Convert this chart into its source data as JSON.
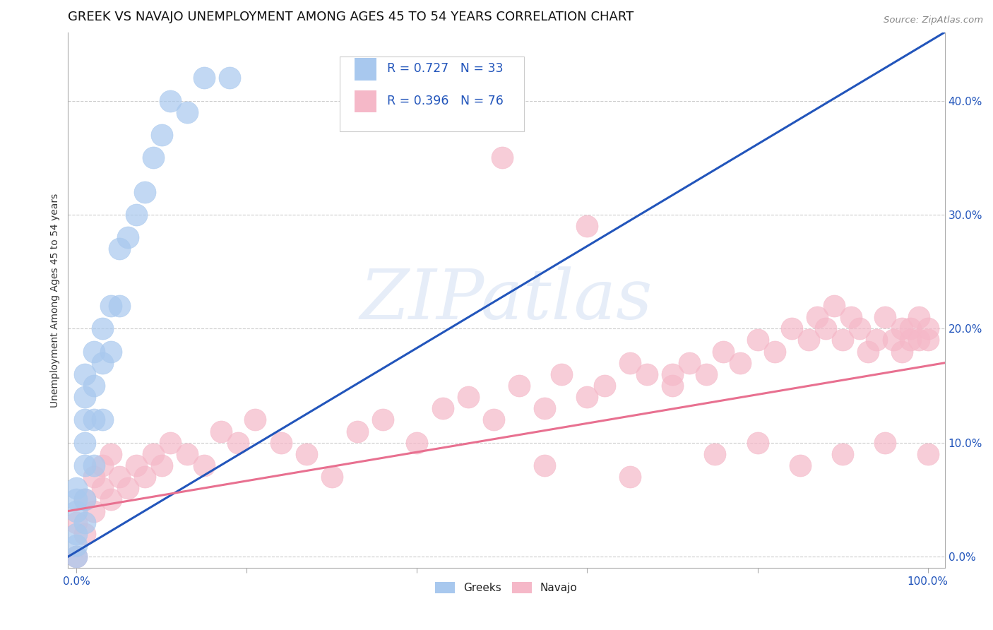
{
  "title": "GREEK VS NAVAJO UNEMPLOYMENT AMONG AGES 45 TO 54 YEARS CORRELATION CHART",
  "source": "Source: ZipAtlas.com",
  "ylabel": "Unemployment Among Ages 45 to 54 years",
  "watermark": "ZIPatlas",
  "greek_R": 0.727,
  "greek_N": 33,
  "navajo_R": 0.396,
  "navajo_N": 76,
  "greek_color": "#a8c8ee",
  "navajo_color": "#f5b8c8",
  "greek_line_color": "#2255bb",
  "navajo_line_color": "#e87090",
  "legend_text_color": "#2255bb",
  "background_color": "#ffffff",
  "greek_x": [
    0.0,
    0.0,
    0.0,
    0.0,
    0.0,
    0.0,
    0.01,
    0.01,
    0.01,
    0.01,
    0.01,
    0.01,
    0.01,
    0.02,
    0.02,
    0.02,
    0.02,
    0.03,
    0.03,
    0.03,
    0.04,
    0.04,
    0.05,
    0.05,
    0.06,
    0.07,
    0.08,
    0.09,
    0.1,
    0.11,
    0.13,
    0.15,
    0.18
  ],
  "greek_y": [
    0.0,
    0.01,
    0.02,
    0.04,
    0.05,
    0.06,
    0.03,
    0.05,
    0.08,
    0.1,
    0.12,
    0.14,
    0.16,
    0.08,
    0.12,
    0.15,
    0.18,
    0.12,
    0.17,
    0.2,
    0.18,
    0.22,
    0.22,
    0.27,
    0.28,
    0.3,
    0.32,
    0.35,
    0.37,
    0.4,
    0.39,
    0.42,
    0.42
  ],
  "navajo_x": [
    0.0,
    0.0,
    0.01,
    0.01,
    0.02,
    0.02,
    0.03,
    0.03,
    0.04,
    0.04,
    0.05,
    0.06,
    0.07,
    0.08,
    0.09,
    0.1,
    0.11,
    0.13,
    0.15,
    0.17,
    0.19,
    0.21,
    0.24,
    0.27,
    0.3,
    0.33,
    0.36,
    0.4,
    0.43,
    0.46,
    0.49,
    0.52,
    0.55,
    0.57,
    0.6,
    0.62,
    0.65,
    0.67,
    0.7,
    0.72,
    0.74,
    0.76,
    0.78,
    0.8,
    0.82,
    0.84,
    0.86,
    0.87,
    0.88,
    0.89,
    0.9,
    0.91,
    0.92,
    0.93,
    0.94,
    0.95,
    0.96,
    0.97,
    0.97,
    0.98,
    0.98,
    0.99,
    0.99,
    1.0,
    1.0,
    0.5,
    0.55,
    0.6,
    0.65,
    0.7,
    0.75,
    0.8,
    0.85,
    0.9,
    0.95,
    1.0
  ],
  "navajo_y": [
    0.0,
    0.03,
    0.02,
    0.05,
    0.04,
    0.07,
    0.06,
    0.08,
    0.05,
    0.09,
    0.07,
    0.06,
    0.08,
    0.07,
    0.09,
    0.08,
    0.1,
    0.09,
    0.08,
    0.11,
    0.1,
    0.12,
    0.1,
    0.09,
    0.07,
    0.11,
    0.12,
    0.1,
    0.13,
    0.14,
    0.12,
    0.15,
    0.13,
    0.16,
    0.14,
    0.15,
    0.17,
    0.16,
    0.15,
    0.17,
    0.16,
    0.18,
    0.17,
    0.19,
    0.18,
    0.2,
    0.19,
    0.21,
    0.2,
    0.22,
    0.19,
    0.21,
    0.2,
    0.18,
    0.19,
    0.21,
    0.19,
    0.2,
    0.18,
    0.19,
    0.2,
    0.19,
    0.21,
    0.19,
    0.2,
    0.35,
    0.08,
    0.29,
    0.07,
    0.16,
    0.09,
    0.1,
    0.08,
    0.09,
    0.1,
    0.09
  ],
  "xlim": [
    -0.01,
    1.02
  ],
  "ylim": [
    -0.01,
    0.46
  ],
  "yticks": [
    0.0,
    0.1,
    0.2,
    0.3,
    0.4
  ],
  "xtick_labels_show": [
    0.0,
    1.0
  ],
  "title_fontsize": 13,
  "tick_fontsize": 11,
  "ylabel_fontsize": 10
}
